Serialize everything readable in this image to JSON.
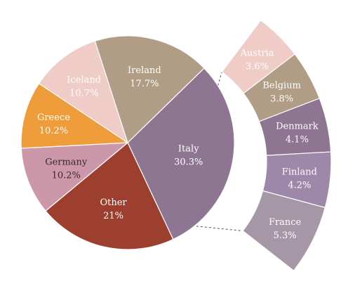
{
  "chart_data": {
    "type": "pie",
    "subtype": "pie-of-pie (bar of ring segment)",
    "title": "",
    "slices": [
      {
        "label": "Italy",
        "value": 30.3,
        "display": "30.3%",
        "color": "#8e7693",
        "text_color": "#ffffff"
      },
      {
        "label": "Other",
        "value": 21,
        "display": "21%",
        "color": "#9c3f2e",
        "text_color": "#ffffff"
      },
      {
        "label": "Germany",
        "value": 10.2,
        "display": "10.2%",
        "color": "#cc97a8",
        "text_color": "#3a2a2a"
      },
      {
        "label": "Greece",
        "value": 10.2,
        "display": "10.2%",
        "color": "#ef9c3a",
        "text_color": "#ffffff"
      },
      {
        "label": "Iceland",
        "value": 10.7,
        "display": "10.7%",
        "color": "#f0ccc6",
        "text_color": "#ffffff"
      },
      {
        "label": "Ireland",
        "value": 17.7,
        "display": "17.7%",
        "color": "#b19c86",
        "text_color": "#ffffff"
      }
    ],
    "other_breakdown": [
      {
        "label": "Austria",
        "value": 3.6,
        "display": "3.6%",
        "color": "#f0ccc6",
        "text_color": "#ffffff"
      },
      {
        "label": "Belgium",
        "value": 3.8,
        "display": "3.8%",
        "color": "#b19c86",
        "text_color": "#ffffff"
      },
      {
        "label": "Denmark",
        "value": 4.1,
        "display": "4.1%",
        "color": "#8e7693",
        "text_color": "#ffffff"
      },
      {
        "label": "Finland",
        "value": 4.2,
        "display": "4.2%",
        "color": "#9d88aa",
        "text_color": "#ffffff"
      },
      {
        "label": "France",
        "value": 5.3,
        "display": "5.3%",
        "color": "#a697a7",
        "text_color": "#ffffff"
      }
    ],
    "legend": "none"
  }
}
